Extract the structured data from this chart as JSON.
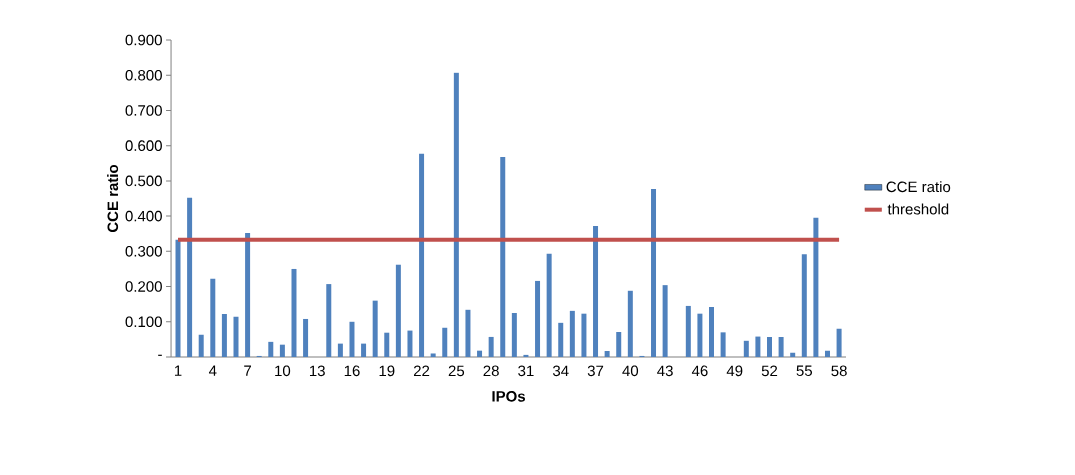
{
  "chart_data": {
    "type": "bar",
    "xlabel": "IPOs",
    "ylabel": "CCE ratio",
    "categories": [
      "1",
      null,
      null,
      "4",
      null,
      null,
      "7",
      null,
      null,
      "10",
      null,
      null,
      "13",
      null,
      null,
      "16",
      null,
      null,
      "19",
      null,
      null,
      "22",
      null,
      null,
      "25",
      null,
      null,
      "28",
      null,
      null,
      "31",
      null,
      null,
      "34",
      null,
      null,
      "37",
      null,
      null,
      "40",
      null,
      null,
      "43",
      null,
      null,
      "46",
      null,
      null,
      "49",
      null,
      null,
      "52",
      null,
      null,
      "55",
      null,
      null,
      "58"
    ],
    "series": [
      {
        "name": "CCE  ratio",
        "color": "#4f81bd",
        "values": [
          0.333,
          0.452,
          0.063,
          0.222,
          0.122,
          0.114,
          0.352,
          0.003,
          0.043,
          0.035,
          0.25,
          0.108,
          0,
          0.207,
          0.038,
          0.1,
          0.038,
          0.16,
          0.069,
          0.262,
          0.075,
          0.577,
          0.01,
          0.083,
          0.807,
          0.134,
          0.018,
          0.057,
          0.568,
          0.125,
          0.006,
          0.216,
          0.293,
          0.097,
          0.131,
          0.123,
          0.372,
          0.017,
          0.071,
          0.188,
          0.003,
          0.477,
          0.204,
          0,
          0.145,
          0.123,
          0.142,
          0.07,
          0,
          0.046,
          0.058,
          0.057,
          0.057,
          0.012,
          0.292,
          0.395,
          0.018,
          0.08
        ]
      },
      {
        "name": "threshold",
        "type": "line",
        "color": "#c0504d",
        "values": [
          0.333,
          0.333,
          0.333,
          0.333,
          0.333,
          0.333,
          0.333,
          0.333,
          0.333,
          0.333,
          0.333,
          0.333,
          0.333,
          0.333,
          0.333,
          0.333,
          0.333,
          0.333,
          0.333,
          0.333,
          0.333,
          0.333,
          0.333,
          0.333,
          0.333,
          0.333,
          0.333,
          0.333,
          0.333,
          0.333,
          0.333,
          0.333,
          0.333,
          0.333,
          0.333,
          0.333,
          0.333,
          0.333,
          0.333,
          0.333,
          0.333,
          0.333,
          0.333,
          0.333,
          0.333,
          0.333,
          0.333,
          0.333,
          0.333,
          0.333,
          0.333,
          0.333,
          0.333,
          0.333,
          0.333,
          0.333,
          0.333,
          0.333
        ]
      }
    ],
    "ylim": [
      0,
      0.9
    ],
    "yticks": [
      {
        "value": 0,
        "label": "-"
      },
      {
        "value": 0.1,
        "label": "0.100"
      },
      {
        "value": 0.2,
        "label": "0.200"
      },
      {
        "value": 0.3,
        "label": "0.300"
      },
      {
        "value": 0.4,
        "label": "0.400"
      },
      {
        "value": 0.5,
        "label": "0.500"
      },
      {
        "value": 0.6,
        "label": "0.600"
      },
      {
        "value": 0.7,
        "label": "0.700"
      },
      {
        "value": 0.8,
        "label": "0.800"
      },
      {
        "value": 0.9,
        "label": "0.900"
      }
    ],
    "legend": "right"
  }
}
